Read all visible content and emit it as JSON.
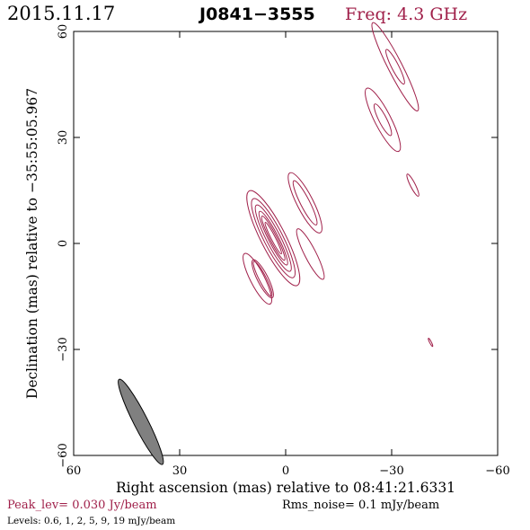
{
  "header": {
    "date": "2015.11.17",
    "source": "J0841−3555",
    "freq": "Freq: 4.3 GHz"
  },
  "footer": {
    "peak": "Peak_lev=  0.030 Jy/beam",
    "rms": "Rms_noise=   0.1 mJy/beam",
    "levels": "Levels: 0.6,   1,   2,   5,   9,   19 mJy/beam"
  },
  "colors": {
    "contour": "#a0204a",
    "accent_text": "#a0204a",
    "beam_fill": "#808080",
    "axis": "#000000"
  },
  "chart_data": {
    "type": "contour",
    "xlabel": "Right ascension (mas) relative to 08:41:21.6331",
    "ylabel": "Declination (mas) relative to −35:55:05.967",
    "xlim": [
      60,
      -60
    ],
    "ylim": [
      -60,
      60
    ],
    "xticks": [
      60,
      30,
      0,
      -30,
      -60
    ],
    "yticks": [
      60,
      30,
      0,
      -30,
      -60
    ],
    "xtick_labels": [
      "60",
      "30",
      "0",
      "−30",
      "−60"
    ],
    "ytick_labels": [
      "60",
      "30",
      "0",
      "−30",
      "−60"
    ],
    "contour_levels_mJy": [
      0.6,
      1,
      2,
      5,
      9,
      19
    ],
    "position_angle_deg": 27,
    "components": [
      {
        "x": 3.5,
        "y": 1.5,
        "semi_major_mas": [
          15.0,
          12.5,
          10.5,
          8.5,
          7.0,
          5.0
        ],
        "semi_minor_mas": [
          3.5,
          2.7,
          2.0,
          1.4,
          1.0,
          0.6
        ]
      },
      {
        "x": -5.5,
        "y": 11.5,
        "semi_major_mas": [
          9.5,
          7.0
        ],
        "semi_minor_mas": [
          2.3,
          1.3
        ]
      },
      {
        "x": -7.0,
        "y": -3.0,
        "semi_major_mas": [
          8.0
        ],
        "semi_minor_mas": [
          1.6
        ]
      },
      {
        "x": 6.5,
        "y": -10.0,
        "semi_major_mas": [
          6.0,
          5.5
        ],
        "semi_minor_mas": [
          1.5,
          1.0
        ]
      },
      {
        "x": 8.0,
        "y": -10.0,
        "semi_major_mas": [
          8.0
        ],
        "semi_minor_mas": [
          2.0
        ]
      },
      {
        "x": -27.5,
        "y": 35.0,
        "semi_major_mas": [
          10.0,
          5.0
        ],
        "semi_minor_mas": [
          2.3,
          1.1
        ]
      },
      {
        "x": -31.0,
        "y": 50.0,
        "semi_major_mas": [
          14.0,
          5.5
        ],
        "semi_minor_mas": [
          2.0,
          1.0
        ]
      },
      {
        "x": -36.0,
        "y": 16.5,
        "semi_major_mas": [
          3.5
        ],
        "semi_minor_mas": [
          0.7
        ]
      },
      {
        "x": -41.0,
        "y": -28.0,
        "semi_major_mas": [
          1.3
        ],
        "semi_minor_mas": [
          0.25
        ]
      }
    ],
    "beam": {
      "x": 41.0,
      "y": -50.5,
      "major_mas": 13.5,
      "minor_mas": 2.0,
      "position_angle_deg": 27
    }
  }
}
